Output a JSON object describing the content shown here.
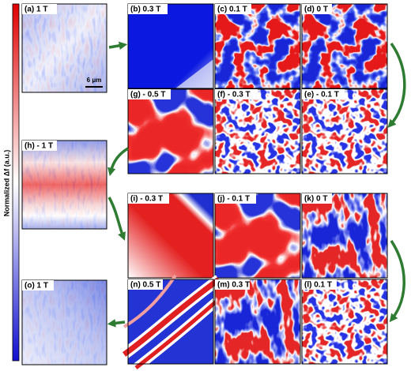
{
  "colorbar_label": "Normalized Δf (a.u.)",
  "scale_bar": "6 μm",
  "panels": [
    "(a) 1 T",
    "(b) 0.3 T",
    "(c) 0.1 T",
    "(d) 0 T",
    "(e) - 0.1 T",
    "(f) - 0.3 T",
    "(g) - 0.5 T",
    "(h) - 1 T",
    "(i) - 0.3 T",
    "(j) - 0.1 T",
    "(k) 0 T",
    "(l) 0.1 T",
    "(m) 0.3 T",
    "(n) 0.5 T",
    "(o) 1 T"
  ]
}
